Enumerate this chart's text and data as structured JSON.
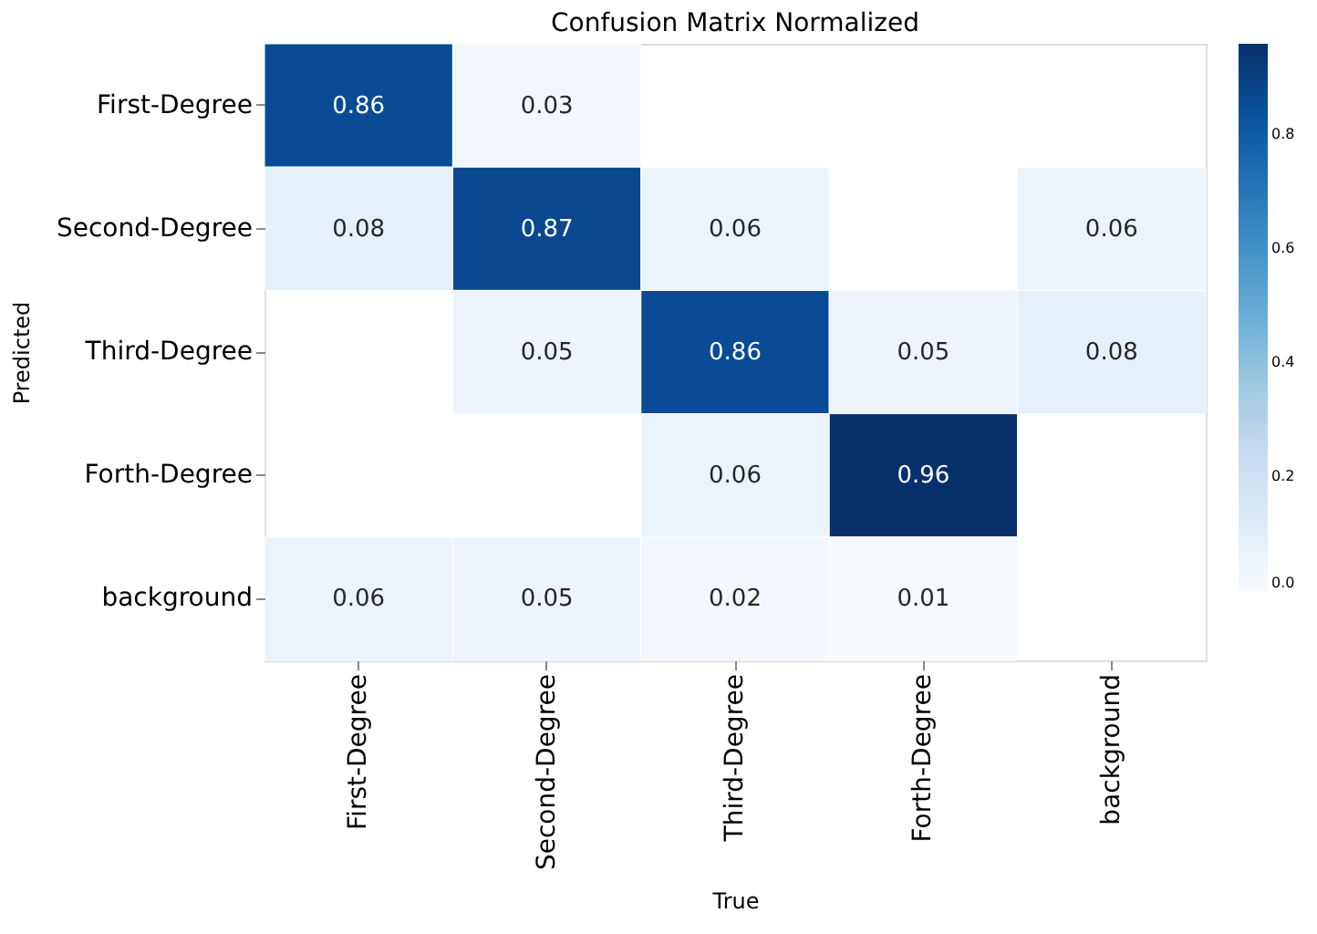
{
  "chart_data": {
    "type": "heatmap",
    "title": "Confusion Matrix Normalized",
    "xlabel": "True",
    "ylabel": "Predicted",
    "categories": [
      "First-Degree",
      "Second-Degree",
      "Third-Degree",
      "Forth-Degree",
      "background"
    ],
    "y_categories": [
      "First-Degree",
      "Second-Degree",
      "Third-Degree",
      "Forth-Degree",
      "background"
    ],
    "cells": [
      [
        0.86,
        0.03,
        null,
        null,
        null
      ],
      [
        0.08,
        0.87,
        0.06,
        null,
        0.06
      ],
      [
        null,
        0.05,
        0.86,
        0.05,
        0.08
      ],
      [
        null,
        null,
        0.06,
        0.96,
        null
      ],
      [
        0.06,
        0.05,
        0.02,
        0.01,
        null
      ]
    ],
    "clim": [
      0,
      0.96
    ],
    "cticks": [
      {
        "value": 0,
        "label": "0.0"
      },
      0.2,
      0.4,
      0.6,
      0.8
    ],
    "data_labels": true
  }
}
